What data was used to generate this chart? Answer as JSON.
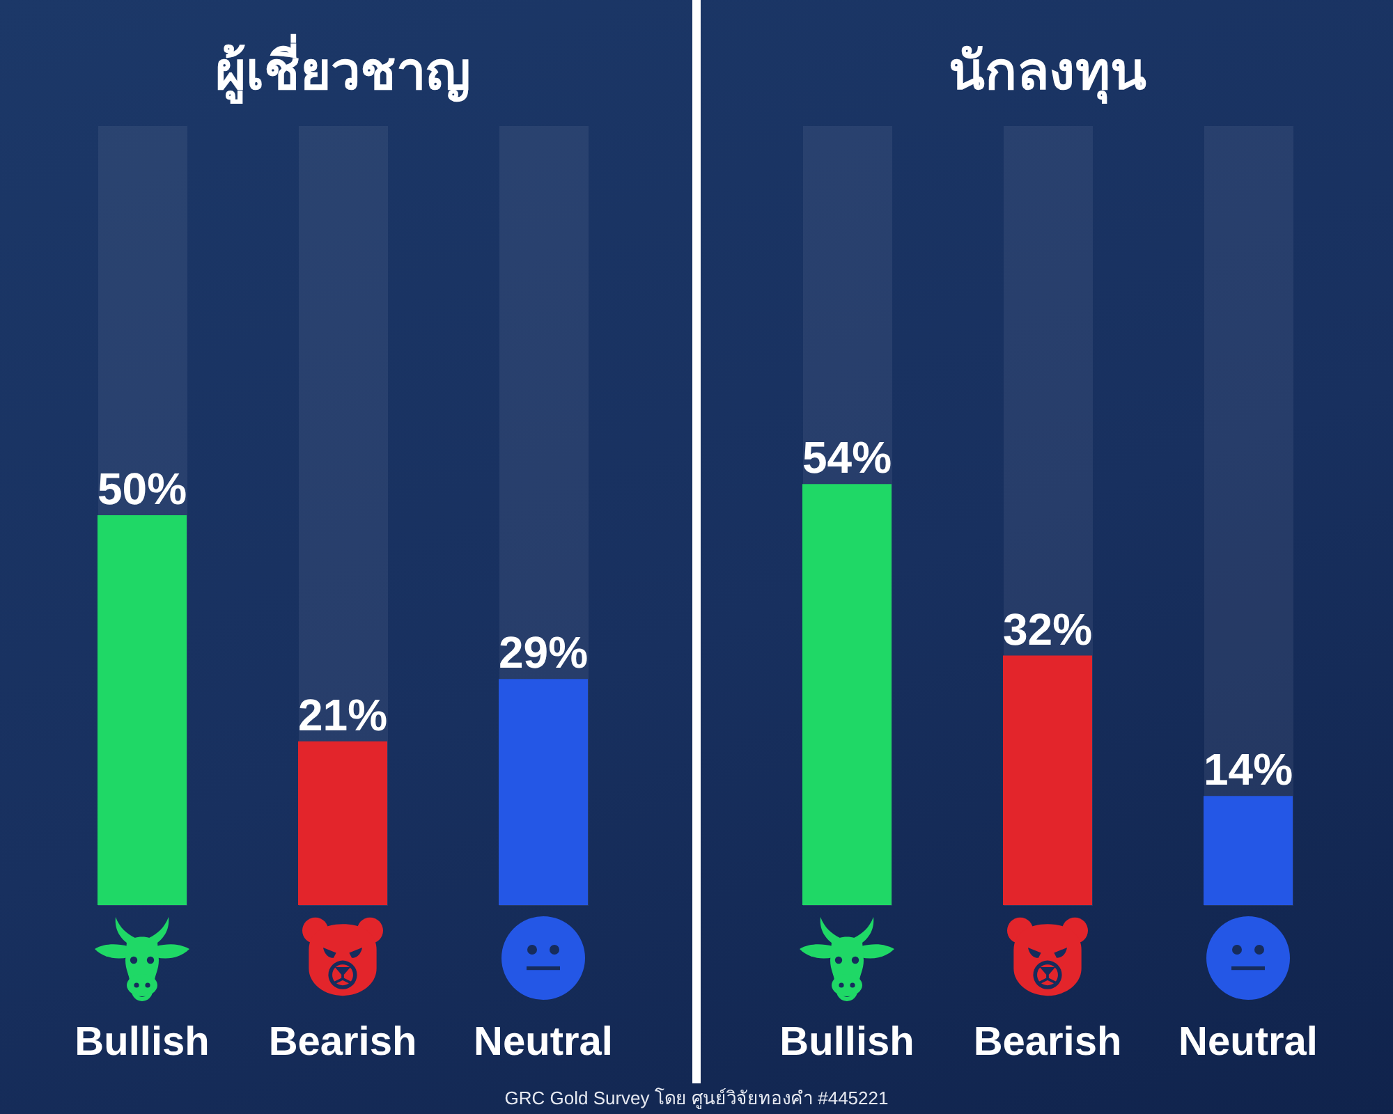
{
  "chart_data": [
    {
      "type": "bar",
      "title": "ผู้เชี่ยวชาญ",
      "categories": [
        "Bullish",
        "Bearish",
        "Neutral"
      ],
      "values": [
        50,
        21,
        29
      ],
      "colors": [
        "#1fd866",
        "#e3252b",
        "#2457e6"
      ],
      "value_labels": [
        "50%",
        "21%",
        "29%"
      ],
      "ylim": [
        0,
        100
      ],
      "tick_labels": "x",
      "grid": "x",
      "annotations": [
        "GRC Gold Survey โดย ศูนย์วิจัยทองคำ #445221"
      ]
    },
    {
      "type": "bar",
      "title": "นักลงทุน",
      "categories": [
        "Bullish",
        "Bearish",
        "Neutral"
      ],
      "values": [
        54,
        32,
        14
      ],
      "colors": [
        "#1fd866",
        "#e3252b",
        "#2457e6"
      ],
      "value_labels": [
        "54%",
        "32%",
        "14%"
      ],
      "ylim": [
        0,
        100
      ],
      "tick_labels": "x",
      "grid": "x"
    }
  ]
}
